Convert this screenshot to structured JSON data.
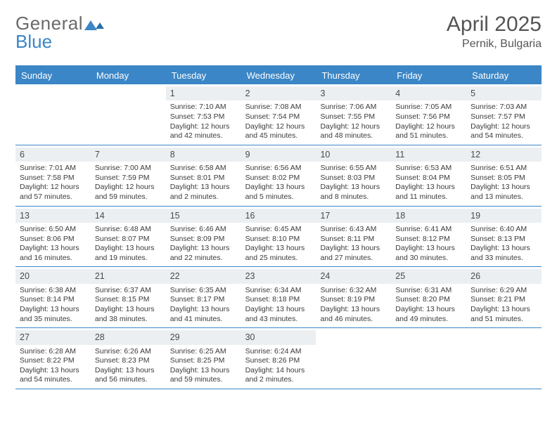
{
  "brand": {
    "part1": "General",
    "part2": "Blue"
  },
  "title": "April 2025",
  "location": "Pernik, Bulgaria",
  "colors": {
    "accent": "#3b86c6",
    "headerBg": "#eceff1",
    "text": "#3a3a3a"
  },
  "dayNames": [
    "Sunday",
    "Monday",
    "Tuesday",
    "Wednesday",
    "Thursday",
    "Friday",
    "Saturday"
  ],
  "weeks": [
    [
      {
        "n": "",
        "sr": "",
        "ss": "",
        "dl": ""
      },
      {
        "n": "",
        "sr": "",
        "ss": "",
        "dl": ""
      },
      {
        "n": "1",
        "sr": "Sunrise: 7:10 AM",
        "ss": "Sunset: 7:53 PM",
        "dl": "Daylight: 12 hours and 42 minutes."
      },
      {
        "n": "2",
        "sr": "Sunrise: 7:08 AM",
        "ss": "Sunset: 7:54 PM",
        "dl": "Daylight: 12 hours and 45 minutes."
      },
      {
        "n": "3",
        "sr": "Sunrise: 7:06 AM",
        "ss": "Sunset: 7:55 PM",
        "dl": "Daylight: 12 hours and 48 minutes."
      },
      {
        "n": "4",
        "sr": "Sunrise: 7:05 AM",
        "ss": "Sunset: 7:56 PM",
        "dl": "Daylight: 12 hours and 51 minutes."
      },
      {
        "n": "5",
        "sr": "Sunrise: 7:03 AM",
        "ss": "Sunset: 7:57 PM",
        "dl": "Daylight: 12 hours and 54 minutes."
      }
    ],
    [
      {
        "n": "6",
        "sr": "Sunrise: 7:01 AM",
        "ss": "Sunset: 7:58 PM",
        "dl": "Daylight: 12 hours and 57 minutes."
      },
      {
        "n": "7",
        "sr": "Sunrise: 7:00 AM",
        "ss": "Sunset: 7:59 PM",
        "dl": "Daylight: 12 hours and 59 minutes."
      },
      {
        "n": "8",
        "sr": "Sunrise: 6:58 AM",
        "ss": "Sunset: 8:01 PM",
        "dl": "Daylight: 13 hours and 2 minutes."
      },
      {
        "n": "9",
        "sr": "Sunrise: 6:56 AM",
        "ss": "Sunset: 8:02 PM",
        "dl": "Daylight: 13 hours and 5 minutes."
      },
      {
        "n": "10",
        "sr": "Sunrise: 6:55 AM",
        "ss": "Sunset: 8:03 PM",
        "dl": "Daylight: 13 hours and 8 minutes."
      },
      {
        "n": "11",
        "sr": "Sunrise: 6:53 AM",
        "ss": "Sunset: 8:04 PM",
        "dl": "Daylight: 13 hours and 11 minutes."
      },
      {
        "n": "12",
        "sr": "Sunrise: 6:51 AM",
        "ss": "Sunset: 8:05 PM",
        "dl": "Daylight: 13 hours and 13 minutes."
      }
    ],
    [
      {
        "n": "13",
        "sr": "Sunrise: 6:50 AM",
        "ss": "Sunset: 8:06 PM",
        "dl": "Daylight: 13 hours and 16 minutes."
      },
      {
        "n": "14",
        "sr": "Sunrise: 6:48 AM",
        "ss": "Sunset: 8:07 PM",
        "dl": "Daylight: 13 hours and 19 minutes."
      },
      {
        "n": "15",
        "sr": "Sunrise: 6:46 AM",
        "ss": "Sunset: 8:09 PM",
        "dl": "Daylight: 13 hours and 22 minutes."
      },
      {
        "n": "16",
        "sr": "Sunrise: 6:45 AM",
        "ss": "Sunset: 8:10 PM",
        "dl": "Daylight: 13 hours and 25 minutes."
      },
      {
        "n": "17",
        "sr": "Sunrise: 6:43 AM",
        "ss": "Sunset: 8:11 PM",
        "dl": "Daylight: 13 hours and 27 minutes."
      },
      {
        "n": "18",
        "sr": "Sunrise: 6:41 AM",
        "ss": "Sunset: 8:12 PM",
        "dl": "Daylight: 13 hours and 30 minutes."
      },
      {
        "n": "19",
        "sr": "Sunrise: 6:40 AM",
        "ss": "Sunset: 8:13 PM",
        "dl": "Daylight: 13 hours and 33 minutes."
      }
    ],
    [
      {
        "n": "20",
        "sr": "Sunrise: 6:38 AM",
        "ss": "Sunset: 8:14 PM",
        "dl": "Daylight: 13 hours and 35 minutes."
      },
      {
        "n": "21",
        "sr": "Sunrise: 6:37 AM",
        "ss": "Sunset: 8:15 PM",
        "dl": "Daylight: 13 hours and 38 minutes."
      },
      {
        "n": "22",
        "sr": "Sunrise: 6:35 AM",
        "ss": "Sunset: 8:17 PM",
        "dl": "Daylight: 13 hours and 41 minutes."
      },
      {
        "n": "23",
        "sr": "Sunrise: 6:34 AM",
        "ss": "Sunset: 8:18 PM",
        "dl": "Daylight: 13 hours and 43 minutes."
      },
      {
        "n": "24",
        "sr": "Sunrise: 6:32 AM",
        "ss": "Sunset: 8:19 PM",
        "dl": "Daylight: 13 hours and 46 minutes."
      },
      {
        "n": "25",
        "sr": "Sunrise: 6:31 AM",
        "ss": "Sunset: 8:20 PM",
        "dl": "Daylight: 13 hours and 49 minutes."
      },
      {
        "n": "26",
        "sr": "Sunrise: 6:29 AM",
        "ss": "Sunset: 8:21 PM",
        "dl": "Daylight: 13 hours and 51 minutes."
      }
    ],
    [
      {
        "n": "27",
        "sr": "Sunrise: 6:28 AM",
        "ss": "Sunset: 8:22 PM",
        "dl": "Daylight: 13 hours and 54 minutes."
      },
      {
        "n": "28",
        "sr": "Sunrise: 6:26 AM",
        "ss": "Sunset: 8:23 PM",
        "dl": "Daylight: 13 hours and 56 minutes."
      },
      {
        "n": "29",
        "sr": "Sunrise: 6:25 AM",
        "ss": "Sunset: 8:25 PM",
        "dl": "Daylight: 13 hours and 59 minutes."
      },
      {
        "n": "30",
        "sr": "Sunrise: 6:24 AM",
        "ss": "Sunset: 8:26 PM",
        "dl": "Daylight: 14 hours and 2 minutes."
      },
      {
        "n": "",
        "sr": "",
        "ss": "",
        "dl": ""
      },
      {
        "n": "",
        "sr": "",
        "ss": "",
        "dl": ""
      },
      {
        "n": "",
        "sr": "",
        "ss": "",
        "dl": ""
      }
    ]
  ]
}
